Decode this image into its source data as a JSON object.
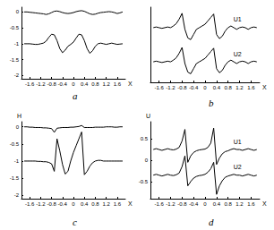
{
  "chart_data": [
    {
      "type": "line",
      "title": "a",
      "x_label": "X",
      "grid": false,
      "xlim": [
        -1.9,
        1.9
      ],
      "xticks": [
        -1.6,
        -1.2,
        -0.8,
        -0.4,
        0,
        0.4,
        0.8,
        1.2,
        1.6
      ],
      "ylim": [
        -2.1,
        0.15
      ],
      "yticks": [
        -2,
        -1.5,
        -1,
        -0.5,
        0
      ],
      "x": [
        -1.8,
        -1.7,
        -1.6,
        -1.5,
        -1.4,
        -1.3,
        -1.2,
        -1.1,
        -1.0,
        -0.9,
        -0.8,
        -0.7,
        -0.6,
        -0.5,
        -0.4,
        -0.3,
        -0.2,
        -0.1,
        0,
        0.1,
        0.2,
        0.3,
        0.4,
        0.5,
        0.6,
        0.7,
        0.8,
        0.9,
        1.0,
        1.1,
        1.2,
        1.3,
        1.4,
        1.5,
        1.6,
        1.7,
        1.8
      ],
      "series": [
        {
          "color": "#000000",
          "values": [
            0,
            0,
            -0.01,
            -0.02,
            -0.03,
            -0.04,
            -0.05,
            -0.06,
            -0.08,
            -0.06,
            -0.02,
            0.02,
            0.03,
            0.01,
            -0.02,
            -0.04,
            -0.05,
            -0.04,
            -0.02,
            0.01,
            0.03,
            0.04,
            0.02,
            -0.02,
            -0.06,
            -0.08,
            -0.07,
            -0.04,
            -0.02,
            -0.01,
            0,
            0.01,
            0,
            -0.02,
            -0.05,
            -0.03,
            0
          ]
        },
        {
          "color": "#000000",
          "values": [
            -1,
            -1,
            -1,
            -1.01,
            -1.02,
            -1.02,
            -1,
            -0.98,
            -0.92,
            -0.8,
            -0.7,
            -0.72,
            -0.9,
            -1.15,
            -1.28,
            -1.2,
            -1.08,
            -1.02,
            -0.95,
            -0.82,
            -0.7,
            -0.72,
            -0.9,
            -1.15,
            -1.3,
            -1.22,
            -1.08,
            -1.0,
            -0.98,
            -1.0,
            -1.02,
            -1.0,
            -0.98,
            -1.0,
            -1.02,
            -1.01,
            -1.0
          ]
        }
      ]
    },
    {
      "type": "line",
      "title": "b",
      "x_label": "X",
      "grid": false,
      "tick_labels": "x",
      "xlim": [
        -1.9,
        1.9
      ],
      "xticks": [
        -1.6,
        -1.2,
        -0.8,
        -0.4,
        0,
        0.4,
        0.8,
        1.2,
        1.6
      ],
      "ylim": [
        -1.1,
        1.1
      ],
      "x": [
        -1.8,
        -1.7,
        -1.6,
        -1.5,
        -1.4,
        -1.3,
        -1.2,
        -1.1,
        -1.0,
        -0.9,
        -0.8,
        -0.7,
        -0.6,
        -0.5,
        -0.4,
        -0.3,
        -0.2,
        -0.1,
        0,
        0.1,
        0.2,
        0.3,
        0.4,
        0.5,
        0.6,
        0.7,
        0.8,
        0.9,
        1.0,
        1.1,
        1.2,
        1.3,
        1.4,
        1.5,
        1.6,
        1.7,
        1.8
      ],
      "series": [
        {
          "name": "U1",
          "color": "#000000",
          "values": [
            0.5,
            0.52,
            0.5,
            0.48,
            0.5,
            0.52,
            0.5,
            0.55,
            0.62,
            0.75,
            0.92,
            0.45,
            0.2,
            0.15,
            0.3,
            0.45,
            0.5,
            0.55,
            0.6,
            0.7,
            0.8,
            0.9,
            0.3,
            0.18,
            0.25,
            0.4,
            0.5,
            0.55,
            0.5,
            0.45,
            0.5,
            0.52,
            0.5,
            0.45,
            0.5,
            0.52,
            0.5
          ]
        },
        {
          "name": "U2",
          "color": "#000000",
          "values": [
            -0.5,
            -0.48,
            -0.5,
            -0.52,
            -0.5,
            -0.48,
            -0.5,
            -0.45,
            -0.38,
            -0.25,
            -0.08,
            -0.55,
            -0.8,
            -0.85,
            -0.7,
            -0.55,
            -0.5,
            -0.45,
            -0.4,
            -0.3,
            -0.2,
            -0.1,
            -0.7,
            -0.82,
            -0.75,
            -0.6,
            -0.5,
            -0.45,
            -0.5,
            -0.55,
            -0.5,
            -0.48,
            -0.5,
            -0.55,
            -0.5,
            -0.48,
            -0.5
          ]
        }
      ]
    },
    {
      "type": "line",
      "title": "c",
      "x_label": "X",
      "y_label": "H",
      "grid": false,
      "xlim": [
        -1.9,
        1.9
      ],
      "xticks": [
        -1.6,
        -1.2,
        -0.8,
        -0.4,
        0,
        0.4,
        0.8,
        1.2,
        1.6
      ],
      "ylim": [
        -2.1,
        0.15
      ],
      "yticks": [
        -2,
        -1.5,
        -1,
        -0.5,
        0
      ],
      "x": [
        -1.8,
        -1.7,
        -1.6,
        -1.5,
        -1.4,
        -1.3,
        -1.2,
        -1.1,
        -1.0,
        -0.9,
        -0.8,
        -0.7,
        -0.6,
        -0.5,
        -0.4,
        -0.3,
        -0.2,
        -0.1,
        0,
        0.1,
        0.2,
        0.3,
        0.4,
        0.5,
        0.6,
        0.7,
        0.8,
        0.9,
        1.0,
        1.1,
        1.2,
        1.3,
        1.4,
        1.5,
        1.6,
        1.7,
        1.8
      ],
      "series": [
        {
          "color": "#000000",
          "values": [
            0,
            0,
            -0.01,
            -0.01,
            -0.02,
            -0.02,
            -0.02,
            -0.03,
            -0.03,
            -0.04,
            -0.05,
            -0.16,
            -0.04,
            -0.03,
            -0.02,
            -0.02,
            -0.02,
            -0.01,
            -0.01,
            0,
            0.01,
            0.04,
            -0.02,
            -0.02,
            -0.02,
            -0.02,
            -0.01,
            -0.01,
            -0.01,
            -0.01,
            0,
            0,
            0,
            -0.01,
            -0.01,
            0,
            0
          ]
        },
        {
          "color": "#000000",
          "values": [
            -1,
            -1,
            -1,
            -1,
            -1,
            -1.01,
            -1.01,
            -1.02,
            -1.02,
            -1.04,
            -1.08,
            -1.3,
            -0.35,
            -0.7,
            -1.1,
            -1.38,
            -1.3,
            -1.0,
            -0.75,
            -0.55,
            -0.35,
            -0.15,
            -1.4,
            -1.3,
            -1.15,
            -1.05,
            -1.0,
            -0.98,
            -0.98,
            -1.0,
            -1,
            -1,
            -1,
            -1,
            -1,
            -1,
            -1
          ]
        }
      ]
    },
    {
      "type": "line",
      "title": "d",
      "x_label": "X",
      "y_label": "U",
      "grid": false,
      "xlim": [
        -1.9,
        1.9
      ],
      "xticks": [
        -1.6,
        -1.2,
        -0.8,
        -0.4,
        0,
        0.4,
        0.8,
        1.2,
        1.6
      ],
      "ylim": [
        -0.9,
        0.9
      ],
      "yticks": [
        -0.5,
        0,
        0.5
      ],
      "x": [
        -1.8,
        -1.7,
        -1.6,
        -1.5,
        -1.4,
        -1.3,
        -1.2,
        -1.1,
        -1.0,
        -0.9,
        -0.8,
        -0.7,
        -0.6,
        -0.5,
        -0.4,
        -0.3,
        -0.2,
        -0.1,
        0,
        0.1,
        0.2,
        0.3,
        0.4,
        0.5,
        0.6,
        0.7,
        0.8,
        0.9,
        1.0,
        1.1,
        1.2,
        1.3,
        1.4,
        1.5,
        1.6,
        1.7,
        1.8
      ],
      "series": [
        {
          "name": "U1",
          "color": "#000000",
          "values": [
            0.25,
            0.27,
            0.25,
            0.23,
            0.25,
            0.27,
            0.25,
            0.24,
            0.26,
            0.3,
            0.45,
            0.72,
            -0.05,
            0.1,
            0.18,
            0.22,
            0.24,
            0.25,
            0.26,
            0.3,
            0.4,
            0.75,
            -0.1,
            0.05,
            0.15,
            0.2,
            0.22,
            0.25,
            0.27,
            0.25,
            0.25,
            0.23,
            0.25,
            0.27,
            0.25,
            0.23,
            0.25
          ]
        },
        {
          "name": "U2",
          "color": "#000000",
          "values": [
            -0.35,
            -0.33,
            -0.35,
            -0.37,
            -0.35,
            -0.33,
            -0.35,
            -0.36,
            -0.34,
            -0.3,
            -0.15,
            0.1,
            -0.6,
            -0.5,
            -0.42,
            -0.38,
            -0.36,
            -0.35,
            -0.33,
            -0.28,
            -0.2,
            -0.05,
            -0.8,
            -0.6,
            -0.48,
            -0.4,
            -0.37,
            -0.35,
            -0.33,
            -0.35,
            -0.35,
            -0.37,
            -0.35,
            -0.33,
            -0.35,
            -0.37,
            -0.35
          ]
        }
      ]
    }
  ]
}
